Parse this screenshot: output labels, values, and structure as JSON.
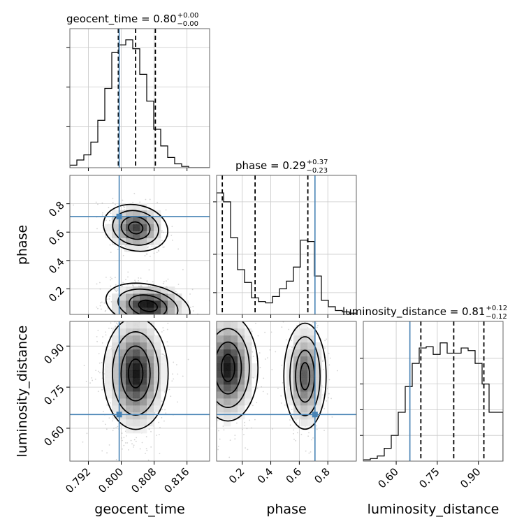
{
  "chart_data": {
    "type": "corner",
    "colors": {
      "truth": "#4682b4",
      "hist": "#000000",
      "points": "#a0a0a0",
      "grid": "#c8c8c8"
    },
    "parameters": [
      {
        "name": "geocent_time",
        "label": "geocent_time",
        "range": [
          0.7875,
          0.8215
        ],
        "ticks": [
          "0.792",
          "0.800",
          "0.808",
          "0.816"
        ],
        "tick_values": [
          0.792,
          0.8,
          0.808,
          0.816
        ],
        "truth": 0.7995,
        "title": {
          "prefix": "geocent_time = 0.80",
          "plus": "+0.00",
          "minus": "−0.00"
        },
        "quantiles": [
          0.7993,
          0.8035,
          0.8083
        ],
        "hist": [
          0.02,
          0.06,
          0.1,
          0.2,
          0.37,
          0.62,
          0.9,
          0.96,
          1.0,
          0.93,
          0.73,
          0.52,
          0.3,
          0.17,
          0.08,
          0.03,
          0.01,
          0.0,
          0.0,
          0.0
        ],
        "ytick_values": [
          0.32,
          0.63,
          0.94
        ]
      },
      {
        "name": "phase",
        "label": "phase",
        "range": [
          0.02,
          1.0
        ],
        "ticks": [
          "0.2",
          "0.4",
          "0.6",
          "0.8"
        ],
        "tick_values": [
          0.2,
          0.4,
          0.6,
          0.8
        ],
        "truth": 0.71,
        "title": {
          "prefix": "phase = 0.29",
          "plus": "+0.37",
          "minus": "−0.23"
        },
        "quantiles": [
          0.06,
          0.29,
          0.66
        ],
        "hist": [
          0.95,
          0.88,
          0.6,
          0.35,
          0.25,
          0.13,
          0.1,
          0.09,
          0.14,
          0.2,
          0.26,
          0.37,
          0.58,
          0.57,
          0.3,
          0.11,
          0.06,
          0.03,
          0.02,
          0.01
        ],
        "ytick_values": [
          0.17,
          0.47,
          0.88
        ]
      },
      {
        "name": "luminosity_distance",
        "label": "luminosity_distance",
        "range": [
          0.48,
          0.99
        ],
        "ticks": [
          "0.60",
          "0.75",
          "0.90"
        ],
        "tick_values": [
          0.6,
          0.75,
          0.9
        ],
        "truth": 0.65,
        "title": {
          "prefix": "luminosity_distance = 0.81",
          "plus": "+0.12",
          "minus": "−0.12"
        },
        "quantiles": [
          0.69,
          0.81,
          0.92
        ],
        "hist": [
          0.01,
          0.02,
          0.04,
          0.1,
          0.2,
          0.38,
          0.58,
          0.76,
          0.88,
          0.89,
          0.83,
          0.92,
          0.84,
          0.84,
          0.88,
          0.86,
          0.76,
          0.6,
          0.38,
          0.38
        ],
        "ytick_values": [
          0.2,
          0.4,
          0.6,
          0.8
        ]
      }
    ],
    "pairs": [
      {
        "x": 0,
        "y": 1,
        "blobs": [
          {
            "cx": 0.8035,
            "cy": 0.63,
            "sx": 0.0032,
            "sy": 0.075,
            "w": 0.45,
            "rot": -0.35
          },
          {
            "cx": 0.8065,
            "cy": 0.08,
            "sx": 0.0042,
            "sy": 0.07,
            "w": 0.55,
            "rot": -0.35
          }
        ]
      },
      {
        "x": 0,
        "y": 2,
        "blobs": [
          {
            "cx": 0.8035,
            "cy": 0.8,
            "sx": 0.0032,
            "sy": 0.095,
            "w": 1.0,
            "rot": 0.0
          }
        ]
      },
      {
        "x": 1,
        "y": 2,
        "blobs": [
          {
            "cx": 0.1,
            "cy": 0.82,
            "sx": 0.085,
            "sy": 0.09,
            "w": 0.58,
            "rot": 0.0
          },
          {
            "cx": 0.64,
            "cy": 0.79,
            "sx": 0.06,
            "sy": 0.09,
            "w": 0.42,
            "rot": 0.0
          }
        ]
      }
    ],
    "grid": true
  }
}
